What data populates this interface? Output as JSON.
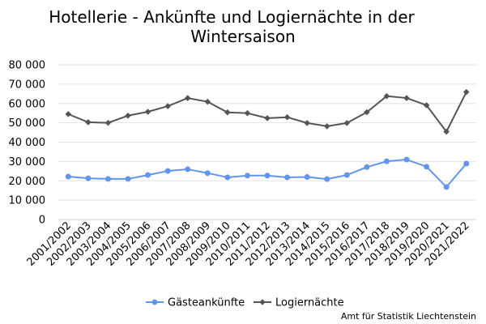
{
  "chart_data": {
    "type": "line",
    "title_lines": [
      "Hotellerie - Ankünfte und Logiernächte in der",
      "Wintersaison"
    ],
    "categories": [
      "2001/2002",
      "2002/2003",
      "2003/2004",
      "2004/2005",
      "2005/2006",
      "2006/2007",
      "2007/2008",
      "2008/2009",
      "2009/2010",
      "2010/2011",
      "2011/2012",
      "2012/2013",
      "2013/2014",
      "2014/2015",
      "2015/2016",
      "2016/2017",
      "2017/2018",
      "2018/2019",
      "2019/2020",
      "2020/2021",
      "2021/2022"
    ],
    "y_ticks": [
      0,
      10000,
      20000,
      30000,
      40000,
      50000,
      60000,
      70000,
      80000
    ],
    "y_tick_labels": [
      "0",
      "10 000",
      "20 000",
      "30 000",
      "40 000",
      "50 000",
      "60 000",
      "70 000",
      "80 000"
    ],
    "ylim": [
      0,
      80000
    ],
    "grid": true,
    "legend_position": "bottom",
    "series": [
      {
        "name": "Gästeankünfte",
        "color": "#6495ED",
        "marker": "circle",
        "values": [
          22200,
          21300,
          21000,
          21000,
          23000,
          25100,
          26000,
          24000,
          21800,
          22700,
          22700,
          21800,
          22000,
          20900,
          23000,
          27100,
          30100,
          31000,
          27300,
          16800,
          28900
        ]
      },
      {
        "name": "Logiernächte",
        "color": "#555555",
        "marker": "diamond",
        "values": [
          54500,
          50300,
          50000,
          53700,
          55700,
          58600,
          62800,
          60900,
          55400,
          55000,
          52400,
          52900,
          49900,
          48200,
          49900,
          55500,
          63800,
          62800,
          59100,
          45400,
          65900
        ]
      }
    ],
    "source": "Amt für Statistik Liechtenstein"
  }
}
